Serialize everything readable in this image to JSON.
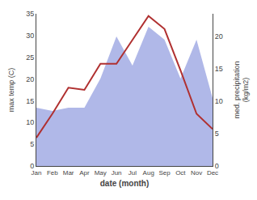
{
  "chart_data": {
    "type": "line",
    "xlabel": "date (month)",
    "ylabel": "max temp (C)",
    "y2label": "med. precipitation\n(kg/m2)",
    "categories": [
      "Jan",
      "Feb",
      "Mar",
      "Apr",
      "May",
      "Jun",
      "Jul",
      "Aug",
      "Sep",
      "Oct",
      "Nov",
      "Dec"
    ],
    "series": [
      {
        "type": "area",
        "axis": "y2",
        "color": "#b0b8e8",
        "values": [
          9.0,
          8.5,
          9.0,
          9.0,
          13.5,
          20.0,
          15.5,
          21.5,
          19.5,
          13.5,
          19.5,
          10.5
        ]
      },
      {
        "type": "line",
        "color": "#b03030",
        "values": [
          6.5,
          12.0,
          18.0,
          17.5,
          23.5,
          23.5,
          29.0,
          34.5,
          31.5,
          22.0,
          12.0,
          8.5
        ]
      }
    ],
    "ylim": [
      0,
      35
    ],
    "yticks": [
      0,
      5,
      10,
      15,
      20,
      25,
      30,
      35
    ],
    "y2lim": [
      0,
      23.5
    ],
    "y2ticks": [
      0,
      5,
      10,
      15,
      20
    ],
    "grid": false
  }
}
